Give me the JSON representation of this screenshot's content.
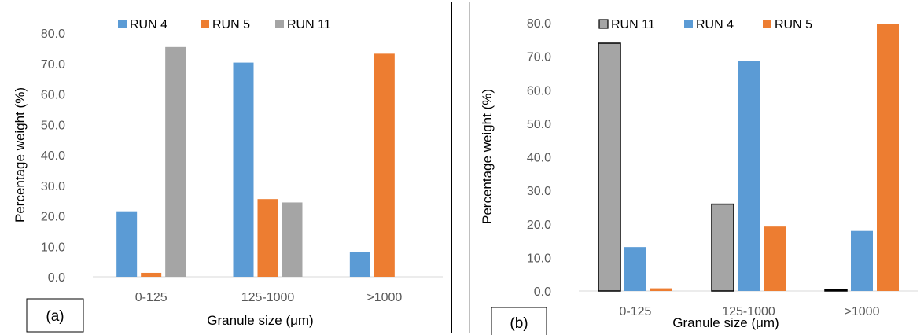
{
  "colors": {
    "run4": "#5b9bd5",
    "run5": "#ed7d31",
    "run11": "#a5a5a5",
    "axis": "#d9d9d9",
    "tick_text": "#595959"
  },
  "chart_data": [
    {
      "panel_label": "(a)",
      "type": "bar",
      "categories": [
        "0-125",
        "125-1000",
        ">1000"
      ],
      "xlabel": "Granule size (μm)",
      "ylabel": "Percentage weight (%)",
      "ylim": [
        0,
        80
      ],
      "yticks": [
        "0.0",
        "10.0",
        "20.0",
        "30.0",
        "40.0",
        "50.0",
        "60.0",
        "70.0",
        "80.0"
      ],
      "legend_position": "top",
      "series": [
        {
          "name": "RUN 4",
          "color": "#5b9bd5",
          "outline": false,
          "values": [
            21.5,
            70.3,
            8.2
          ]
        },
        {
          "name": "RUN 5",
          "color": "#ed7d31",
          "outline": false,
          "values": [
            1.3,
            25.5,
            73.2
          ]
        },
        {
          "name": "RUN 11",
          "color": "#a5a5a5",
          "outline": false,
          "values": [
            75.4,
            24.4,
            0
          ]
        }
      ]
    },
    {
      "panel_label": "(b)",
      "type": "bar",
      "categories": [
        "0-125",
        "125-1000",
        ">1000"
      ],
      "xlabel": "Granule size (μm)",
      "ylabel": "Percentage weight (%)",
      "ylim": [
        0,
        80
      ],
      "yticks": [
        "0.0",
        "10.0",
        "20.0",
        "30.0",
        "40.0",
        "50.0",
        "60.0",
        "70.0",
        "80.0"
      ],
      "legend_position": "top",
      "series": [
        {
          "name": "RUN 11",
          "color": "#a5a5a5",
          "outline": true,
          "values": [
            73.9,
            25.9,
            0.3
          ]
        },
        {
          "name": "RUN 4",
          "color": "#5b9bd5",
          "outline": false,
          "values": [
            13.1,
            68.7,
            17.9
          ]
        },
        {
          "name": "RUN 5",
          "color": "#ed7d31",
          "outline": false,
          "values": [
            0.8,
            19.2,
            79.7
          ]
        }
      ]
    }
  ]
}
